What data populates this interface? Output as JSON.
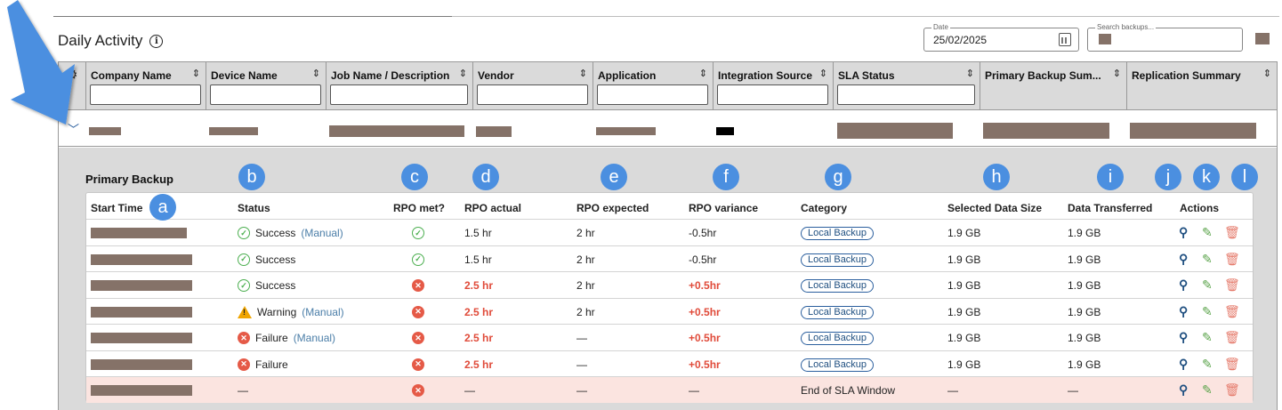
{
  "page": {
    "title": "Daily Activity",
    "date_label": "Date",
    "date_value": "25/02/2025",
    "search_placeholder": "Search backups..."
  },
  "grid": {
    "columns": [
      {
        "name": "company-name",
        "label": "Company Name"
      },
      {
        "name": "device-name",
        "label": "Device Name"
      },
      {
        "name": "job-name",
        "label": "Job Name / Description"
      },
      {
        "name": "vendor",
        "label": "Vendor"
      },
      {
        "name": "application",
        "label": "Application"
      },
      {
        "name": "integration-source",
        "label": "Integration Source"
      },
      {
        "name": "sla-status",
        "label": "SLA Status"
      },
      {
        "name": "primary-backup-summary",
        "label": "Primary Backup Sum..."
      },
      {
        "name": "replication-summary",
        "label": "Replication Summary"
      }
    ]
  },
  "detail": {
    "section_title": "Primary Backup",
    "headers": {
      "start_time": "Start Time",
      "status": "Status",
      "rpo_met": "RPO met?",
      "rpo_actual": "RPO actual",
      "rpo_expected": "RPO expected",
      "rpo_variance": "RPO variance",
      "category": "Category",
      "selected_size": "Selected Data Size",
      "transferred": "Data Transferred",
      "actions": "Actions"
    },
    "rows": [
      {
        "status": "Success",
        "status_type": "ok",
        "manual": "(Manual)",
        "rpo_met": "ok",
        "rpo_actual": "1.5 hr",
        "rpo_actual_red": false,
        "rpo_expected": "2 hr",
        "rpo_variance": "-0.5hr",
        "variance_red": false,
        "category": "Local Backup",
        "selected": "1.9 GB",
        "transferred": "1.9 GB"
      },
      {
        "status": "Success",
        "status_type": "ok",
        "manual": "",
        "rpo_met": "ok",
        "rpo_actual": "1.5 hr",
        "rpo_actual_red": false,
        "rpo_expected": "2 hr",
        "rpo_variance": "-0.5hr",
        "variance_red": false,
        "category": "Local Backup",
        "selected": "1.9 GB",
        "transferred": "1.9 GB"
      },
      {
        "status": "Success",
        "status_type": "ok",
        "manual": "",
        "rpo_met": "fail",
        "rpo_actual": "2.5 hr",
        "rpo_actual_red": true,
        "rpo_expected": "2 hr",
        "rpo_variance": "+0.5hr",
        "variance_red": true,
        "category": "Local Backup",
        "selected": "1.9 GB",
        "transferred": "1.9 GB"
      },
      {
        "status": "Warning",
        "status_type": "warn",
        "manual": "(Manual)",
        "rpo_met": "fail",
        "rpo_actual": "2.5 hr",
        "rpo_actual_red": true,
        "rpo_expected": "2 hr",
        "rpo_variance": "+0.5hr",
        "variance_red": true,
        "category": "Local Backup",
        "selected": "1.9 GB",
        "transferred": "1.9 GB"
      },
      {
        "status": "Failure",
        "status_type": "fail",
        "manual": "(Manual)",
        "rpo_met": "fail",
        "rpo_actual": "2.5 hr",
        "rpo_actual_red": true,
        "rpo_expected": "—",
        "rpo_variance": "+0.5hr",
        "variance_red": true,
        "category": "Local Backup",
        "selected": "1.9 GB",
        "transferred": "1.9 GB"
      },
      {
        "status": "Failure",
        "status_type": "fail",
        "manual": "",
        "rpo_met": "fail",
        "rpo_actual": "2.5 hr",
        "rpo_actual_red": true,
        "rpo_expected": "—",
        "rpo_variance": "+0.5hr",
        "variance_red": true,
        "category": "Local Backup",
        "selected": "1.9 GB",
        "transferred": "1.9 GB"
      },
      {
        "status": "—",
        "status_type": "none",
        "manual": "",
        "rpo_met": "fail",
        "rpo_actual": "—",
        "rpo_actual_red": false,
        "rpo_expected": "—",
        "rpo_variance": "—",
        "variance_red": false,
        "category": "End of SLA Window",
        "category_plain": true,
        "selected": "—",
        "transferred": "—"
      }
    ]
  },
  "callouts": [
    "a",
    "b",
    "c",
    "d",
    "e",
    "f",
    "g",
    "h",
    "i",
    "j",
    "k",
    "l"
  ],
  "colors": {
    "accent": "#4b8fe0",
    "red": "#e04b3a",
    "green": "#4caf50",
    "redact": "#857268"
  }
}
